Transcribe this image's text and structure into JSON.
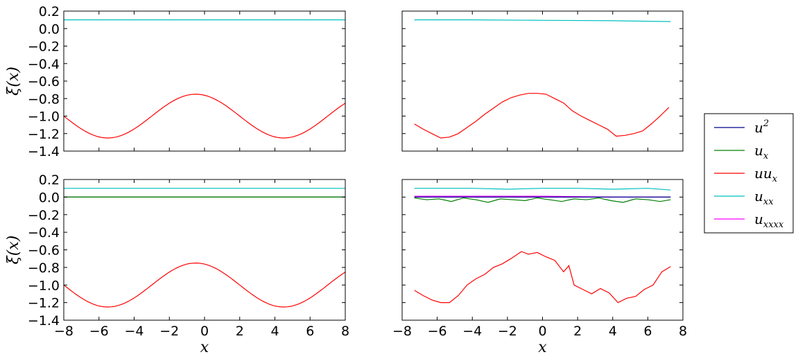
{
  "chart_data": [
    {
      "type": "line",
      "panel": "top-left",
      "xlim": [
        -8,
        8
      ],
      "ylim": [
        -1.4,
        0.2
      ],
      "yticks": [
        "0.2",
        "0.0",
        "−0.2",
        "−0.4",
        "−0.6",
        "−0.8",
        "−1.0",
        "−1.2",
        "−1.4"
      ],
      "xticks": [],
      "ylabel": "ξ(x)",
      "xlabel": "",
      "series": [
        {
          "name": "u_xx",
          "color": "#00bfbf",
          "x": [
            -8,
            8
          ],
          "y": [
            0.1,
            0.1
          ]
        },
        {
          "name": "uu_x",
          "color": "#ff0000",
          "function": "-1.0 + 0.25*cos(2*pi*(x+0.5)/10)",
          "x_range": [
            -8,
            8
          ]
        }
      ]
    },
    {
      "type": "line",
      "panel": "top-right",
      "xlim": [
        -8,
        8
      ],
      "ylim": [
        -1.4,
        0.2
      ],
      "yticks": [],
      "xticks": [],
      "series": [
        {
          "name": "u_xx",
          "color": "#00bfbf",
          "x": [
            -7.3,
            -4,
            0,
            4,
            7.3
          ],
          "y": [
            0.1,
            0.1,
            0.095,
            0.09,
            0.08
          ]
        },
        {
          "name": "uu_x",
          "color": "#ff0000",
          "x": [
            -7.3,
            -6.8,
            -6.3,
            -5.8,
            -5.3,
            -4.8,
            -4.3,
            -3.8,
            -3.3,
            -2.8,
            -2.3,
            -1.8,
            -1.3,
            -0.8,
            -0.3,
            0.2,
            0.7,
            1.2,
            1.7,
            2.2,
            2.7,
            3.2,
            3.7,
            4.2,
            4.7,
            5.2,
            5.7,
            6.2,
            6.7,
            7.2
          ],
          "y": [
            -1.09,
            -1.15,
            -1.2,
            -1.25,
            -1.24,
            -1.2,
            -1.13,
            -1.06,
            -0.98,
            -0.91,
            -0.84,
            -0.79,
            -0.76,
            -0.74,
            -0.74,
            -0.75,
            -0.8,
            -0.85,
            -0.94,
            -1.0,
            -1.05,
            -1.1,
            -1.15,
            -1.23,
            -1.22,
            -1.2,
            -1.17,
            -1.09,
            -1.0,
            -0.9
          ]
        }
      ]
    },
    {
      "type": "line",
      "panel": "bottom-left",
      "xlim": [
        -8,
        8
      ],
      "ylim": [
        -1.4,
        0.2
      ],
      "yticks": [
        "0.2",
        "0.0",
        "−0.2",
        "−0.4",
        "−0.6",
        "−0.8",
        "−1.0",
        "−1.2",
        "−1.4"
      ],
      "xticks": [
        "−8",
        "−6",
        "−4",
        "−2",
        "0",
        "2",
        "4",
        "6",
        "8"
      ],
      "ylabel": "ξ(x)",
      "xlabel": "x",
      "series": [
        {
          "name": "u^2",
          "color": "#00008b",
          "x": [
            -8,
            8
          ],
          "y": [
            0.0,
            0.0
          ]
        },
        {
          "name": "u_x",
          "color": "#008000",
          "x": [
            -8,
            8
          ],
          "y": [
            0.0,
            0.0
          ]
        },
        {
          "name": "u_xx",
          "color": "#00bfbf",
          "x": [
            -8,
            8
          ],
          "y": [
            0.1,
            0.1
          ]
        },
        {
          "name": "uu_x",
          "color": "#ff0000",
          "function": "-1.0 + 0.25*cos(2*pi*(x+0.5)/10)",
          "x_range": [
            -8,
            8
          ]
        }
      ]
    },
    {
      "type": "line",
      "panel": "bottom-right",
      "xlim": [
        -8,
        8
      ],
      "ylim": [
        -1.4,
        0.2
      ],
      "yticks": [],
      "xticks": [
        "−8",
        "−6",
        "−4",
        "−2",
        "0",
        "2",
        "4",
        "6",
        "8"
      ],
      "xlabel": "x",
      "series": [
        {
          "name": "u_xx",
          "color": "#00bfbf",
          "x": [
            -7.3,
            -6,
            -4,
            -2,
            0,
            2,
            4,
            6,
            7.3
          ],
          "y": [
            0.1,
            0.1,
            0.1,
            0.09,
            0.1,
            0.1,
            0.09,
            0.1,
            0.08
          ]
        },
        {
          "name": "u_xxxx",
          "color": "#ff00ff",
          "x": [
            -7.3,
            -4,
            0,
            4,
            7.3
          ],
          "y": [
            0.01,
            0.01,
            0.01,
            0.0,
            0.0
          ]
        },
        {
          "name": "u^2",
          "color": "#00008b",
          "x": [
            -7.3,
            0,
            7.3
          ],
          "y": [
            0.0,
            0.0,
            0.0
          ]
        },
        {
          "name": "u_x",
          "color": "#008000",
          "x": [
            -7.3,
            -6.6,
            -5.9,
            -5.2,
            -4.5,
            -3.8,
            -3.1,
            -2.4,
            -1.7,
            -1.0,
            -0.3,
            0.4,
            1.1,
            1.8,
            2.5,
            3.2,
            3.9,
            4.6,
            5.3,
            6.0,
            6.7,
            7.3
          ],
          "y": [
            -0.01,
            -0.03,
            -0.02,
            -0.05,
            -0.01,
            -0.03,
            -0.06,
            -0.02,
            -0.03,
            -0.04,
            -0.01,
            -0.03,
            -0.05,
            -0.02,
            -0.03,
            -0.01,
            -0.04,
            -0.06,
            -0.02,
            -0.03,
            -0.05,
            -0.03
          ]
        },
        {
          "name": "uu_x",
          "color": "#ff0000",
          "x": [
            -7.3,
            -6.8,
            -6.3,
            -5.8,
            -5.3,
            -4.8,
            -4.3,
            -3.8,
            -3.3,
            -2.8,
            -2.3,
            -1.8,
            -1.5,
            -1.2,
            -0.8,
            -0.3,
            0.2,
            0.7,
            1.2,
            1.5,
            1.8,
            2.3,
            2.8,
            3.3,
            3.8,
            4.3,
            4.8,
            5.3,
            5.8,
            6.3,
            6.8,
            7.3
          ],
          "y": [
            -1.06,
            -1.12,
            -1.17,
            -1.2,
            -1.2,
            -1.12,
            -1.0,
            -0.93,
            -0.88,
            -0.8,
            -0.76,
            -0.7,
            -0.66,
            -0.62,
            -0.65,
            -0.63,
            -0.68,
            -0.72,
            -0.85,
            -0.78,
            -1.0,
            -1.05,
            -1.1,
            -1.04,
            -1.09,
            -1.2,
            -1.15,
            -1.13,
            -1.05,
            -1.0,
            -0.85,
            -0.79
          ]
        }
      ]
    }
  ],
  "legend": {
    "placement": "right",
    "entries": [
      {
        "label": "u",
        "sup": "2",
        "sub": "",
        "color": "#00008b"
      },
      {
        "label": "u",
        "sup": "",
        "sub": "x",
        "color": "#008000"
      },
      {
        "label": "uu",
        "sup": "",
        "sub": "x",
        "color": "#ff0000"
      },
      {
        "label": "u",
        "sup": "",
        "sub": "xx",
        "color": "#00bfbf"
      },
      {
        "label": "u",
        "sup": "",
        "sub": "xxxx",
        "color": "#ff00ff"
      }
    ]
  }
}
